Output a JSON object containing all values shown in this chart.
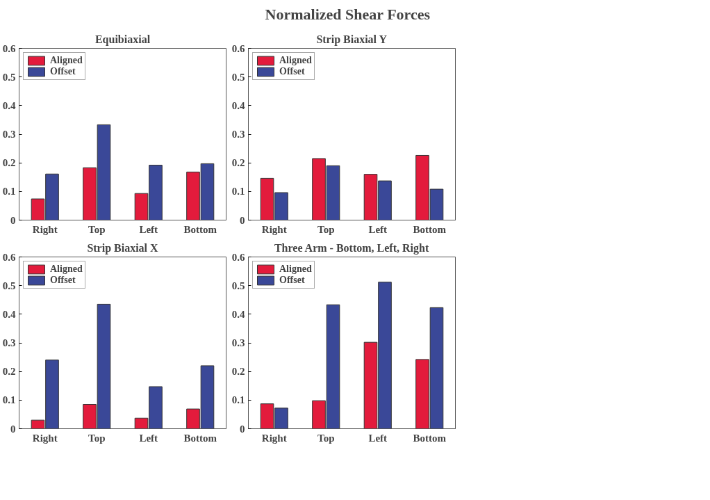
{
  "chart_data": [
    {
      "type": "other",
      "title": "Normalized Shear Forces"
    },
    {
      "type": "bar",
      "title": "Equibiaxial",
      "categories": [
        "Right",
        "Top",
        "Left",
        "Bottom"
      ],
      "ylim": [
        0,
        0.6
      ],
      "yticks": [
        0,
        0.1,
        0.2,
        0.3,
        0.4,
        0.5,
        0.6
      ],
      "grid": false,
      "legend": "top left",
      "series": [
        {
          "name": "Aligned",
          "color": "#e31b3c",
          "values": [
            0.074,
            0.183,
            0.093,
            0.168
          ]
        },
        {
          "name": "Offset",
          "color": "#3a4898",
          "values": [
            0.161,
            0.333,
            0.192,
            0.197
          ]
        }
      ]
    },
    {
      "type": "bar",
      "title": "Strip Biaxial Y",
      "categories": [
        "Right",
        "Top",
        "Left",
        "Bottom"
      ],
      "ylim": [
        0,
        0.6
      ],
      "yticks": [
        0,
        0.1,
        0.2,
        0.3,
        0.4,
        0.5,
        0.6
      ],
      "grid": false,
      "legend": "top left",
      "series": [
        {
          "name": "Aligned",
          "color": "#e31b3c",
          "values": [
            0.146,
            0.215,
            0.16,
            0.226
          ]
        },
        {
          "name": "Offset",
          "color": "#3a4898",
          "values": [
            0.096,
            0.19,
            0.137,
            0.108
          ]
        }
      ]
    },
    {
      "type": "bar",
      "title": "Strip Biaxial X",
      "categories": [
        "Right",
        "Top",
        "Left",
        "Bottom"
      ],
      "ylim": [
        0,
        0.6
      ],
      "yticks": [
        0,
        0.1,
        0.2,
        0.3,
        0.4,
        0.5,
        0.6
      ],
      "grid": false,
      "legend": "top left",
      "series": [
        {
          "name": "Aligned",
          "color": "#e31b3c",
          "values": [
            0.03,
            0.085,
            0.037,
            0.069
          ]
        },
        {
          "name": "Offset",
          "color": "#3a4898",
          "values": [
            0.24,
            0.435,
            0.147,
            0.22
          ]
        }
      ]
    },
    {
      "type": "bar",
      "title": "Three Arm - Bottom, Left, Right",
      "categories": [
        "Right",
        "Top",
        "Left",
        "Bottom"
      ],
      "ylim": [
        0,
        0.6
      ],
      "yticks": [
        0,
        0.1,
        0.2,
        0.3,
        0.4,
        0.5,
        0.6
      ],
      "grid": false,
      "legend": "top left",
      "series": [
        {
          "name": "Aligned",
          "color": "#e31b3c",
          "values": [
            0.087,
            0.098,
            0.302,
            0.242
          ]
        },
        {
          "name": "Offset",
          "color": "#3a4898",
          "values": [
            0.072,
            0.433,
            0.512,
            0.423
          ]
        }
      ]
    }
  ]
}
